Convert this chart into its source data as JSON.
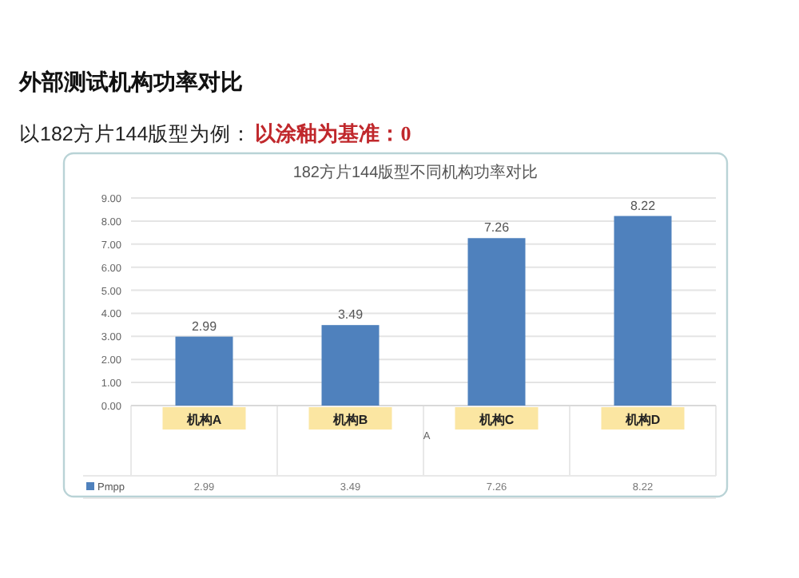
{
  "chart_data": {
    "type": "bar",
    "title": "182方片144版型不同机构功率对比",
    "subtitle": "以182方片144版型为例：",
    "annotations": [
      "外部测试机构功率对比",
      "以涂釉为基准：0"
    ],
    "xlabel": "A",
    "categories": [
      "机构A",
      "机构B",
      "机构C",
      "机构D"
    ],
    "series": [
      {
        "name": "Pmpp",
        "color": "#4f81bd",
        "values": [
          2.99,
          3.49,
          7.26,
          8.22
        ],
        "value_labels": [
          "2.99",
          "3.49",
          "7.26",
          "8.22"
        ]
      }
    ],
    "ylim": [
      0,
      9
    ],
    "yticks": [
      {
        "value": 0,
        "label": "0.00"
      },
      {
        "value": 1,
        "label": "1.00"
      },
      {
        "value": 2,
        "label": "2.00"
      },
      {
        "value": 3,
        "label": "3.00"
      },
      {
        "value": 4,
        "label": "4.00"
      },
      {
        "value": 5,
        "label": "5.00"
      },
      {
        "value": 6,
        "label": "6.00"
      },
      {
        "value": 7,
        "label": "7.00"
      },
      {
        "value": 8,
        "label": "8.00"
      },
      {
        "value": 9,
        "label": "9.00"
      }
    ],
    "grid": "y",
    "legend": "bottom"
  }
}
